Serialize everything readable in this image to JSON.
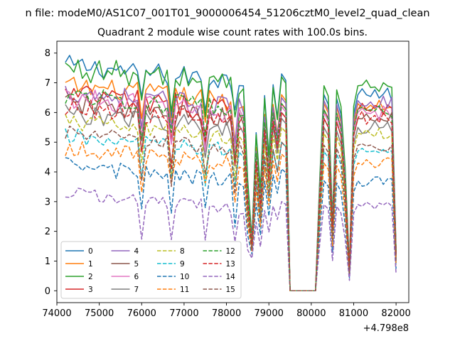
{
  "chart_data": {
    "type": "line",
    "suptitle": "n file: modeM0/AS1C07_001T01_9000006454_51206cztM0_level2_quad_clean",
    "title": "Quadrant 2 module wise count rates with 100.0s bins.",
    "xlabel": "",
    "ylabel": "",
    "x_offset_label": "+4.798e8",
    "xlim": [
      74000,
      82300
    ],
    "ylim": [
      -0.4,
      8.4
    ],
    "x_ticks": [
      74000,
      75000,
      76000,
      77000,
      78000,
      79000,
      80000,
      81000,
      82000
    ],
    "x_tick_labels": [
      "74000",
      "75000",
      "76000",
      "77000",
      "78000",
      "79000",
      "80000",
      "81000",
      "82000"
    ],
    "y_ticks": [
      0,
      1,
      2,
      3,
      4,
      5,
      6,
      7,
      8
    ],
    "y_tick_labels": [
      "0",
      "1",
      "2",
      "3",
      "4",
      "5",
      "6",
      "7",
      "8"
    ],
    "grid": false,
    "legend_placement": "lower-left",
    "legend_columns": 4,
    "x_start": 74200,
    "x_step": 100,
    "series": [
      {
        "name": "0",
        "color": "#1f77b4",
        "style": "solid",
        "base": 7.6,
        "amp": 0.25,
        "gap": 7.3,
        "eg": 6.6
      },
      {
        "name": "1",
        "color": "#ff7f0e",
        "style": "solid",
        "base": 6.9,
        "amp": 0.25,
        "gap": 6.6,
        "eg": 6.3
      },
      {
        "name": "2",
        "color": "#2ca02c",
        "style": "solid",
        "base": 7.5,
        "amp": 0.3,
        "gap": 7.2,
        "eg": 6.9
      },
      {
        "name": "3",
        "color": "#d62728",
        "style": "solid",
        "base": 6.6,
        "amp": 0.3,
        "gap": 6.3,
        "eg": 6.1
      },
      {
        "name": "4",
        "color": "#9467bd",
        "style": "solid",
        "base": 6.7,
        "amp": 0.25,
        "gap": 6.5,
        "eg": 6.4
      },
      {
        "name": "5",
        "color": "#8c564b",
        "style": "solid",
        "base": 6.3,
        "amp": 0.25,
        "gap": 6.0,
        "eg": 5.8
      },
      {
        "name": "6",
        "color": "#e377c2",
        "style": "solid",
        "base": 6.5,
        "amp": 0.25,
        "gap": 6.2,
        "eg": 6.0
      },
      {
        "name": "7",
        "color": "#7f7f7f",
        "style": "solid",
        "base": 6.0,
        "amp": 0.25,
        "gap": 5.8,
        "eg": 5.5
      },
      {
        "name": "8",
        "color": "#bcbd22",
        "style": "dashed",
        "base": 5.7,
        "amp": 0.2,
        "gap": 5.5,
        "eg": 5.3
      },
      {
        "name": "9",
        "color": "#17becf",
        "style": "dashed",
        "base": 5.2,
        "amp": 0.2,
        "gap": 5.0,
        "eg": 4.7
      },
      {
        "name": "10",
        "color": "#1f77b4",
        "style": "dashed",
        "base": 4.2,
        "amp": 0.2,
        "gap": 4.1,
        "eg": 3.7
      },
      {
        "name": "11",
        "color": "#ff7f0e",
        "style": "dashed",
        "base": 4.8,
        "amp": 0.2,
        "gap": 4.6,
        "eg": 4.3
      },
      {
        "name": "12",
        "color": "#2ca02c",
        "style": "dashed",
        "base": 6.6,
        "amp": 0.25,
        "gap": 6.3,
        "eg": 6.1
      },
      {
        "name": "13",
        "color": "#d62728",
        "style": "dashed",
        "base": 6.2,
        "amp": 0.25,
        "gap": 6.0,
        "eg": 5.8
      },
      {
        "name": "14",
        "color": "#9467bd",
        "style": "dashed",
        "base": 3.3,
        "amp": 0.15,
        "gap": 3.0,
        "eg": 2.9
      },
      {
        "name": "15",
        "color": "#8c564b",
        "style": "dashed",
        "base": 5.3,
        "amp": 0.2,
        "gap": 5.0,
        "eg": 4.9
      }
    ]
  }
}
